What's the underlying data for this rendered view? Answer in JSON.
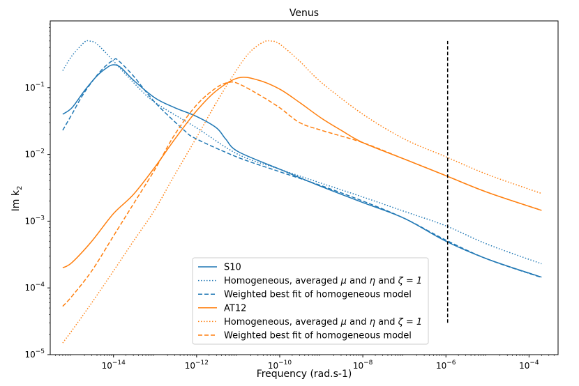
{
  "chart_data": {
    "type": "line",
    "title": "Venus",
    "xlabel": "Frequency (rad.s-1)",
    "ylabel": "Im k",
    "ylabel_sub": "2",
    "xscale": "log",
    "yscale": "log",
    "xlim": [
      3e-16,
      0.0005
    ],
    "ylim": [
      1e-05,
      1
    ],
    "grid": false,
    "legend_position": "lower-center",
    "x_ticks": [
      {
        "base": "10",
        "exp": "−14",
        "value": 1e-14
      },
      {
        "base": "10",
        "exp": "−12",
        "value": 1e-12
      },
      {
        "base": "10",
        "exp": "−10",
        "value": 1e-10
      },
      {
        "base": "10",
        "exp": "−8",
        "value": 1e-08
      },
      {
        "base": "10",
        "exp": "−6",
        "value": 1e-06
      },
      {
        "base": "10",
        "exp": "−4",
        "value": 0.0001
      }
    ],
    "y_ticks": [
      {
        "base": "10",
        "exp": "−5",
        "value": 1e-05
      },
      {
        "base": "10",
        "exp": "−4",
        "value": 0.0001
      },
      {
        "base": "10",
        "exp": "−3",
        "value": 0.001
      },
      {
        "base": "10",
        "exp": "−2",
        "value": 0.01
      },
      {
        "base": "10",
        "exp": "−1",
        "value": 0.1
      }
    ],
    "vline": {
      "x": 1.1e-06,
      "y_range": [
        3e-05,
        0.5
      ],
      "color": "#000000",
      "style": "dashed"
    },
    "legend": [
      {
        "text": "S10",
        "math": null,
        "color": "#1f77b4",
        "style": "solid"
      },
      {
        "text": "Homogeneous, averaged ",
        "math": [
          "μ",
          " and ",
          "η",
          " and ",
          "ζ = 1"
        ],
        "color": "#1f77b4",
        "style": "dotted"
      },
      {
        "text": "Weighted best fit of homogeneous model",
        "math": null,
        "color": "#1f77b4",
        "style": "dashed"
      },
      {
        "text": "AT12",
        "math": null,
        "color": "#ff7f0e",
        "style": "solid"
      },
      {
        "text": "Homogeneous, averaged ",
        "math": [
          "μ",
          " and ",
          "η",
          " and ",
          "ζ = 1"
        ],
        "color": "#ff7f0e",
        "style": "dotted"
      },
      {
        "text": "Weighted best fit of homogeneous model",
        "math": null,
        "color": "#ff7f0e",
        "style": "dashed"
      }
    ],
    "series": [
      {
        "color": "#1f77b4",
        "style": "solid",
        "points": [
          [
            6e-16,
            0.04
          ],
          [
            1e-15,
            0.05
          ],
          [
            2e-15,
            0.09
          ],
          [
            4e-15,
            0.15
          ],
          [
            7e-15,
            0.2
          ],
          [
            1e-14,
            0.22
          ],
          [
            1.5e-14,
            0.2
          ],
          [
            3e-14,
            0.13
          ],
          [
            1e-13,
            0.07
          ],
          [
            3e-13,
            0.05
          ],
          [
            1e-12,
            0.037
          ],
          [
            3e-12,
            0.025
          ],
          [
            5e-12,
            0.017
          ],
          [
            1e-11,
            0.011
          ],
          [
            1e-10,
            0.006
          ],
          [
            1e-09,
            0.0033
          ],
          [
            1e-08,
            0.0019
          ],
          [
            1e-07,
            0.0011
          ],
          [
            1e-06,
            0.0005
          ],
          [
            1e-05,
            0.00027
          ],
          [
            0.0002,
            0.000145
          ]
        ]
      },
      {
        "color": "#1f77b4",
        "style": "dotted",
        "points": [
          [
            6e-16,
            0.18
          ],
          [
            1e-15,
            0.3
          ],
          [
            2e-15,
            0.48
          ],
          [
            2.5e-15,
            0.5
          ],
          [
            4e-15,
            0.45
          ],
          [
            1e-14,
            0.25
          ],
          [
            3e-14,
            0.12
          ],
          [
            1e-13,
            0.06
          ],
          [
            1e-12,
            0.025
          ],
          [
            1e-11,
            0.01
          ],
          [
            1e-10,
            0.006
          ],
          [
            1e-09,
            0.0037
          ],
          [
            1e-08,
            0.0023
          ],
          [
            1e-07,
            0.0014
          ],
          [
            1e-06,
            0.00085
          ],
          [
            1e-05,
            0.00045
          ],
          [
            0.0002,
            0.00023
          ]
        ]
      },
      {
        "color": "#1f77b4",
        "style": "dashed",
        "points": [
          [
            6e-16,
            0.023
          ],
          [
            1e-15,
            0.04
          ],
          [
            2e-15,
            0.085
          ],
          [
            5e-15,
            0.18
          ],
          [
            1e-14,
            0.26
          ],
          [
            1.3e-14,
            0.255
          ],
          [
            3e-14,
            0.15
          ],
          [
            1e-13,
            0.06
          ],
          [
            5e-13,
            0.023
          ],
          [
            1e-12,
            0.017
          ],
          [
            1e-11,
            0.009
          ],
          [
            1e-10,
            0.0055
          ],
          [
            1e-09,
            0.0034
          ],
          [
            1e-08,
            0.002
          ],
          [
            1e-07,
            0.0011
          ],
          [
            1e-06,
            0.00052
          ],
          [
            1e-05,
            0.00027
          ],
          [
            0.0002,
            0.000143
          ]
        ]
      },
      {
        "color": "#ff7f0e",
        "style": "solid",
        "points": [
          [
            6e-16,
            0.0002
          ],
          [
            1e-15,
            0.00024
          ],
          [
            3e-15,
            0.0005
          ],
          [
            1e-14,
            0.0013
          ],
          [
            3e-14,
            0.0025
          ],
          [
            1e-13,
            0.0065
          ],
          [
            3e-13,
            0.017
          ],
          [
            1e-12,
            0.045
          ],
          [
            3e-12,
            0.09
          ],
          [
            1e-11,
            0.14
          ],
          [
            3e-11,
            0.13
          ],
          [
            1e-10,
            0.095
          ],
          [
            3e-10,
            0.06
          ],
          [
            1e-09,
            0.035
          ],
          [
            3e-09,
            0.023
          ],
          [
            1e-08,
            0.015
          ],
          [
            1e-07,
            0.0085
          ],
          [
            1e-06,
            0.0048
          ],
          [
            1e-05,
            0.0027
          ],
          [
            0.0002,
            0.00145
          ]
        ]
      },
      {
        "color": "#ff7f0e",
        "style": "dotted",
        "points": [
          [
            6e-16,
            1.5e-05
          ],
          [
            1e-15,
            2.3e-05
          ],
          [
            3e-15,
            6e-05
          ],
          [
            1e-14,
            0.00018
          ],
          [
            3e-14,
            0.0005
          ],
          [
            1e-13,
            0.0015
          ],
          [
            3e-13,
            0.005
          ],
          [
            1e-12,
            0.018
          ],
          [
            3e-12,
            0.06
          ],
          [
            1e-11,
            0.2
          ],
          [
            2e-11,
            0.35
          ],
          [
            4e-11,
            0.48
          ],
          [
            6e-11,
            0.5
          ],
          [
            1e-10,
            0.45
          ],
          [
            3e-10,
            0.25
          ],
          [
            1e-09,
            0.12
          ],
          [
            1e-08,
            0.04
          ],
          [
            1e-07,
            0.017
          ],
          [
            1e-06,
            0.0092
          ],
          [
            1e-05,
            0.005
          ],
          [
            0.0002,
            0.0026
          ]
        ]
      },
      {
        "color": "#ff7f0e",
        "style": "dashed",
        "points": [
          [
            6e-16,
            5.3e-05
          ],
          [
            1e-15,
            7.5e-05
          ],
          [
            3e-15,
            0.00018
          ],
          [
            1e-14,
            0.0006
          ],
          [
            3e-14,
            0.0018
          ],
          [
            1e-13,
            0.006
          ],
          [
            3e-13,
            0.02
          ],
          [
            1e-12,
            0.055
          ],
          [
            3e-12,
            0.1
          ],
          [
            6e-12,
            0.12
          ],
          [
            1e-11,
            0.115
          ],
          [
            3e-11,
            0.08
          ],
          [
            1e-10,
            0.05
          ],
          [
            3e-10,
            0.03
          ],
          [
            1e-09,
            0.023
          ],
          [
            1e-08,
            0.015
          ],
          [
            1e-07,
            0.0085
          ],
          [
            1e-06,
            0.0048
          ],
          [
            1e-05,
            0.0027
          ],
          [
            0.0002,
            0.00145
          ]
        ]
      }
    ]
  }
}
